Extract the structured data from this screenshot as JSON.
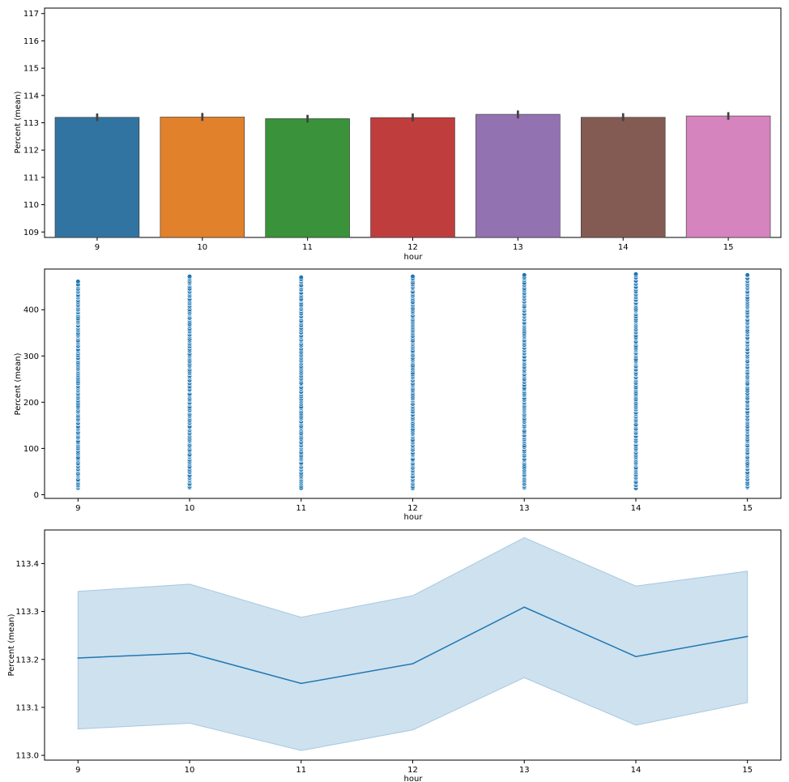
{
  "chart_data": [
    {
      "type": "bar",
      "xlabel": "hour",
      "ylabel": "Percent (mean)",
      "categories": [
        "9",
        "10",
        "11",
        "12",
        "13",
        "14",
        "15"
      ],
      "values": [
        113.2,
        113.21,
        113.15,
        113.19,
        113.31,
        113.2,
        113.25
      ],
      "ci_low": [
        113.06,
        113.07,
        113.01,
        113.05,
        113.16,
        113.06,
        113.11
      ],
      "ci_high": [
        113.34,
        113.36,
        113.29,
        113.34,
        113.45,
        113.35,
        113.39
      ],
      "colors": [
        "#3274a1",
        "#e1812c",
        "#3a923a",
        "#c03d3e",
        "#9372b2",
        "#845b53",
        "#d684bd"
      ],
      "ylim": [
        108.8,
        117.2
      ],
      "yticks": [
        "109",
        "110",
        "111",
        "112",
        "113",
        "114",
        "115",
        "116",
        "117"
      ]
    },
    {
      "type": "scatter",
      "xlabel": "hour",
      "ylabel": "Percent (mean)",
      "categories": [
        "9",
        "10",
        "11",
        "12",
        "13",
        "14",
        "15"
      ],
      "x_values": [
        9,
        10,
        11,
        12,
        13,
        14,
        15
      ],
      "y_min": [
        13,
        13,
        14,
        13,
        13,
        14,
        13
      ],
      "y_max": [
        461,
        472,
        470,
        472,
        475,
        477,
        475
      ],
      "point_color": "#1f77b4",
      "ylim": [
        -8,
        488
      ],
      "yticks": [
        "0",
        "100",
        "200",
        "300",
        "400"
      ]
    },
    {
      "type": "line",
      "xlabel": "hour",
      "ylabel": "Percent (mean)",
      "x": [
        9,
        10,
        11,
        12,
        13,
        14,
        15
      ],
      "categories": [
        "9",
        "10",
        "11",
        "12",
        "13",
        "14",
        "15"
      ],
      "values": [
        113.203,
        113.213,
        113.15,
        113.191,
        113.309,
        113.206,
        113.248
      ],
      "ci_low": [
        113.055,
        113.067,
        113.01,
        113.053,
        113.162,
        113.063,
        113.11
      ],
      "ci_high": [
        113.342,
        113.357,
        113.288,
        113.333,
        113.454,
        113.353,
        113.384
      ],
      "line_color": "#1f77b4",
      "band_color": "#a6c8e0",
      "ylim": [
        112.99,
        113.47
      ],
      "yticks": [
        "113.0",
        "113.1",
        "113.2",
        "113.3",
        "113.4"
      ]
    }
  ]
}
